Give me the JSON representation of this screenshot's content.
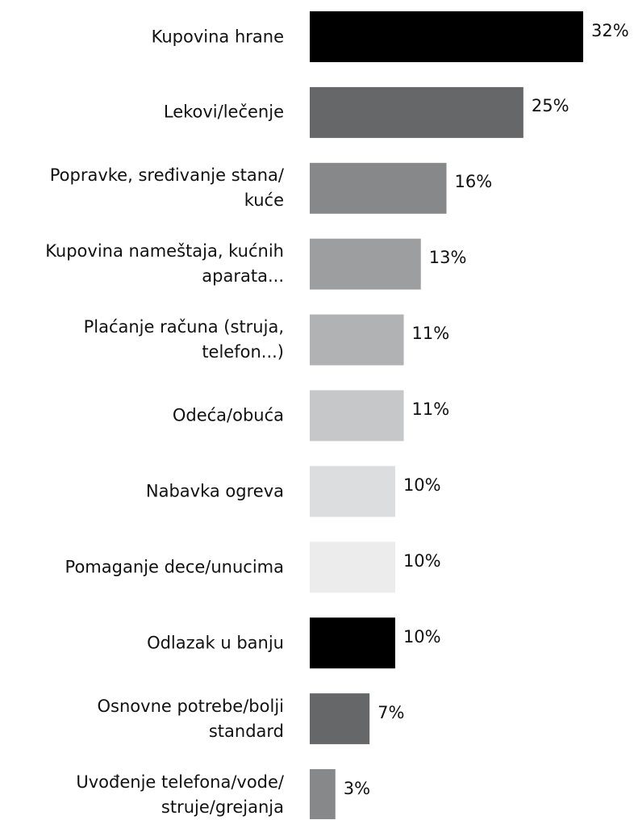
{
  "chart_data": {
    "type": "bar",
    "orientation": "horizontal",
    "categories": [
      "Kupovina hrane",
      "Lekovi/lečenje",
      "Popravke, sređivanje stana/\nkuće",
      "Kupovina nameštaja, kućnih\naparata...",
      "Plaćanje računa (struja,\ntelefon...)",
      "Odeća/obuća",
      "Nabavka ogreva",
      "Pomaganje dece/unucima",
      "Odlazak u banju",
      "Osnovne potrebe/bolji\nstandard",
      "Uvođenje telefona/vode/\nstruje/grejanja"
    ],
    "values": [
      32,
      25,
      16,
      13,
      11,
      11,
      10,
      10,
      10,
      7,
      3
    ],
    "value_labels": [
      "32%",
      "25%",
      "16%",
      "13%",
      "11%",
      "11%",
      "10%",
      "10%",
      "10%",
      "7%",
      "3%"
    ],
    "colors": [
      "#000000",
      "#666769",
      "#87888a",
      "#9d9ea0",
      "#b1b2b4",
      "#c6c7c9",
      "#dcdddf",
      "#ececed",
      "#000000",
      "#666769",
      "#87888a"
    ]
  }
}
